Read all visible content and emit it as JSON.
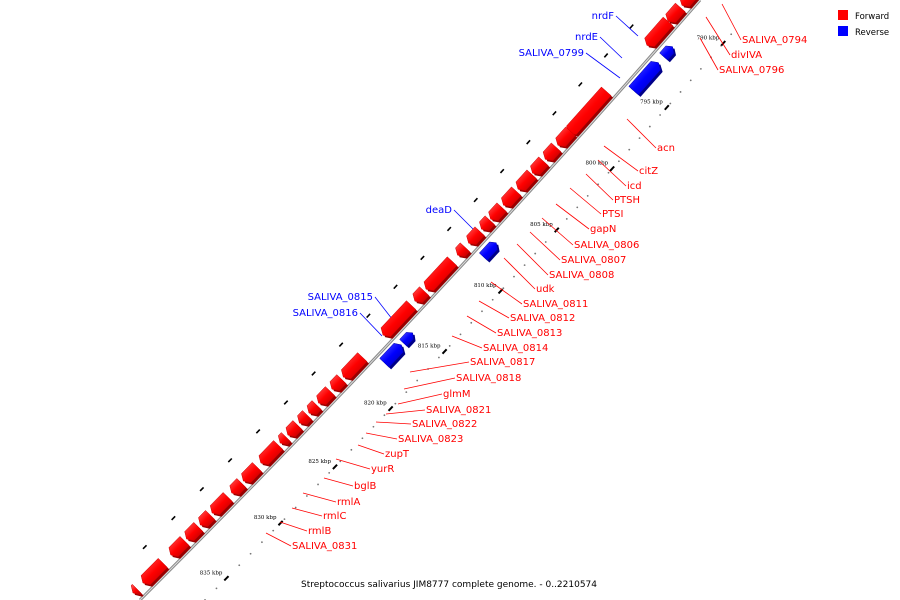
{
  "caption": "Streptococcus salivarius JIM8777 complete genome. - 0..2210574",
  "legend": {
    "forward": {
      "label": "Forward",
      "color": "#ff0000"
    },
    "reverse": {
      "label": "Reverse",
      "color": "#0000ff"
    }
  },
  "colors": {
    "forward": "#ff0000",
    "reverse": "#0000ff",
    "line": "#777777"
  },
  "ticks": [
    {
      "label": "790 kbp"
    },
    {
      "label": "795 kbp"
    },
    {
      "label": "800 kbp"
    },
    {
      "label": "805 kbp"
    },
    {
      "label": "810 kbp"
    },
    {
      "label": "815 kbp"
    },
    {
      "label": "820 kbp"
    },
    {
      "label": "825 kbp"
    },
    {
      "label": "830 kbp"
    },
    {
      "label": "835 kbp"
    }
  ],
  "forward_labels": [
    "SALIVA_0794",
    "divIVA",
    "SALIVA_0796",
    "acn",
    "citZ",
    "icd",
    "PTSH",
    "PTSI",
    "gapN",
    "SALIVA_0806",
    "SALIVA_0807",
    "SALIVA_0808",
    "udk",
    "SALIVA_0811",
    "SALIVA_0812",
    "SALIVA_0813",
    "SALIVA_0814",
    "SALIVA_0817",
    "SALIVA_0818",
    "glmM",
    "SALIVA_0821",
    "SALIVA_0822",
    "SALIVA_0823",
    "zupT",
    "yurR",
    "bglB",
    "rmlA",
    "rmlC",
    "rmlB",
    "SALIVA_0831"
  ],
  "reverse_labels": [
    "nrdF",
    "nrdE",
    "SALIVA_0799",
    "deaD",
    "SALIVA_0815",
    "SALIVA_0816"
  ]
}
